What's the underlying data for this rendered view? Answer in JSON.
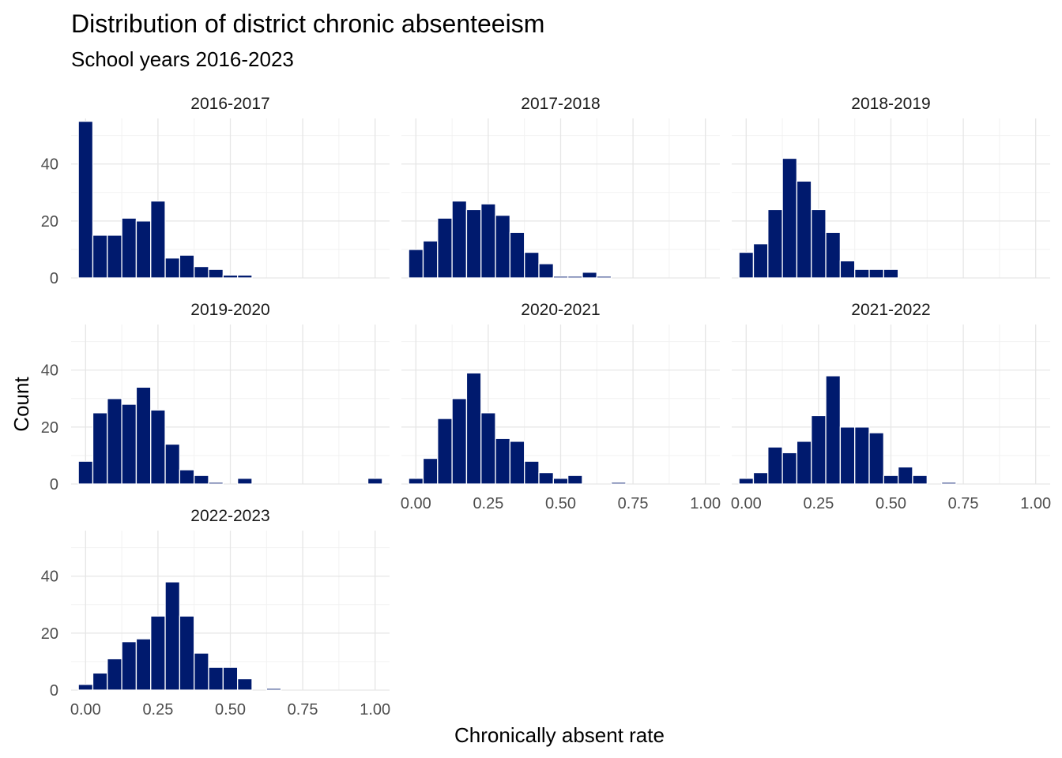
{
  "chart_data": {
    "type": "histogram",
    "title": "Distribution of district chronic absenteeism",
    "subtitle": "School years 2016-2023",
    "xlabel": "Chronically absent rate",
    "ylabel": "Count",
    "xlim": [
      -0.05,
      1.05
    ],
    "ylim": [
      0,
      56
    ],
    "x_ticks": [
      0.0,
      0.25,
      0.5,
      0.75,
      1.0
    ],
    "x_tick_labels": [
      "0.00",
      "0.25",
      "0.50",
      "0.75",
      "1.00"
    ],
    "y_ticks": [
      0,
      20,
      40
    ],
    "y_tick_labels": [
      "0",
      "20",
      "40"
    ],
    "bin_width": 0.05,
    "bar_color": "#001a6e",
    "grid": true,
    "panels": [
      {
        "label": "2016-2017",
        "bars": [
          [
            0.0,
            55
          ],
          [
            0.05,
            15
          ],
          [
            0.1,
            15
          ],
          [
            0.15,
            21
          ],
          [
            0.2,
            20
          ],
          [
            0.25,
            27
          ],
          [
            0.3,
            7
          ],
          [
            0.35,
            8
          ],
          [
            0.4,
            4
          ],
          [
            0.45,
            3
          ],
          [
            0.5,
            1
          ],
          [
            0.55,
            1
          ]
        ]
      },
      {
        "label": "2017-2018",
        "bars": [
          [
            0.0,
            10
          ],
          [
            0.05,
            13
          ],
          [
            0.1,
            21
          ],
          [
            0.15,
            27
          ],
          [
            0.2,
            24
          ],
          [
            0.25,
            26
          ],
          [
            0.3,
            22
          ],
          [
            0.35,
            16
          ],
          [
            0.4,
            9
          ],
          [
            0.45,
            5
          ],
          [
            0.5,
            0.6
          ],
          [
            0.55,
            0.6
          ],
          [
            0.6,
            2
          ],
          [
            0.65,
            0.6
          ]
        ]
      },
      {
        "label": "2018-2019",
        "bars": [
          [
            0.0,
            9
          ],
          [
            0.05,
            12
          ],
          [
            0.1,
            24
          ],
          [
            0.15,
            42
          ],
          [
            0.2,
            34
          ],
          [
            0.25,
            24
          ],
          [
            0.3,
            16
          ],
          [
            0.35,
            6
          ],
          [
            0.4,
            3
          ],
          [
            0.45,
            3
          ],
          [
            0.5,
            3
          ]
        ]
      },
      {
        "label": "2019-2020",
        "bars": [
          [
            0.0,
            8
          ],
          [
            0.05,
            25
          ],
          [
            0.1,
            30
          ],
          [
            0.15,
            28
          ],
          [
            0.2,
            34
          ],
          [
            0.25,
            26
          ],
          [
            0.3,
            14
          ],
          [
            0.35,
            5
          ],
          [
            0.4,
            3
          ],
          [
            0.45,
            0.6
          ],
          [
            0.55,
            2
          ],
          [
            1.0,
            2
          ]
        ]
      },
      {
        "label": "2020-2021",
        "bars": [
          [
            0.0,
            2
          ],
          [
            0.05,
            9
          ],
          [
            0.1,
            23
          ],
          [
            0.15,
            30
          ],
          [
            0.2,
            39
          ],
          [
            0.25,
            25
          ],
          [
            0.3,
            16
          ],
          [
            0.35,
            15
          ],
          [
            0.4,
            8
          ],
          [
            0.45,
            4
          ],
          [
            0.5,
            2
          ],
          [
            0.55,
            3
          ],
          [
            0.7,
            0.6
          ]
        ]
      },
      {
        "label": "2021-2022",
        "bars": [
          [
            0.0,
            2
          ],
          [
            0.05,
            4
          ],
          [
            0.1,
            13
          ],
          [
            0.15,
            11
          ],
          [
            0.2,
            15
          ],
          [
            0.25,
            24
          ],
          [
            0.3,
            38
          ],
          [
            0.35,
            20
          ],
          [
            0.4,
            20
          ],
          [
            0.45,
            18
          ],
          [
            0.5,
            3
          ],
          [
            0.55,
            6
          ],
          [
            0.6,
            3
          ],
          [
            0.7,
            0.6
          ]
        ]
      },
      {
        "label": "2022-2023",
        "bars": [
          [
            0.0,
            2
          ],
          [
            0.05,
            6
          ],
          [
            0.1,
            11
          ],
          [
            0.15,
            17
          ],
          [
            0.2,
            18
          ],
          [
            0.25,
            26
          ],
          [
            0.3,
            38
          ],
          [
            0.35,
            26
          ],
          [
            0.4,
            13
          ],
          [
            0.45,
            8
          ],
          [
            0.5,
            8
          ],
          [
            0.55,
            4
          ],
          [
            0.65,
            0.6
          ]
        ]
      }
    ]
  }
}
